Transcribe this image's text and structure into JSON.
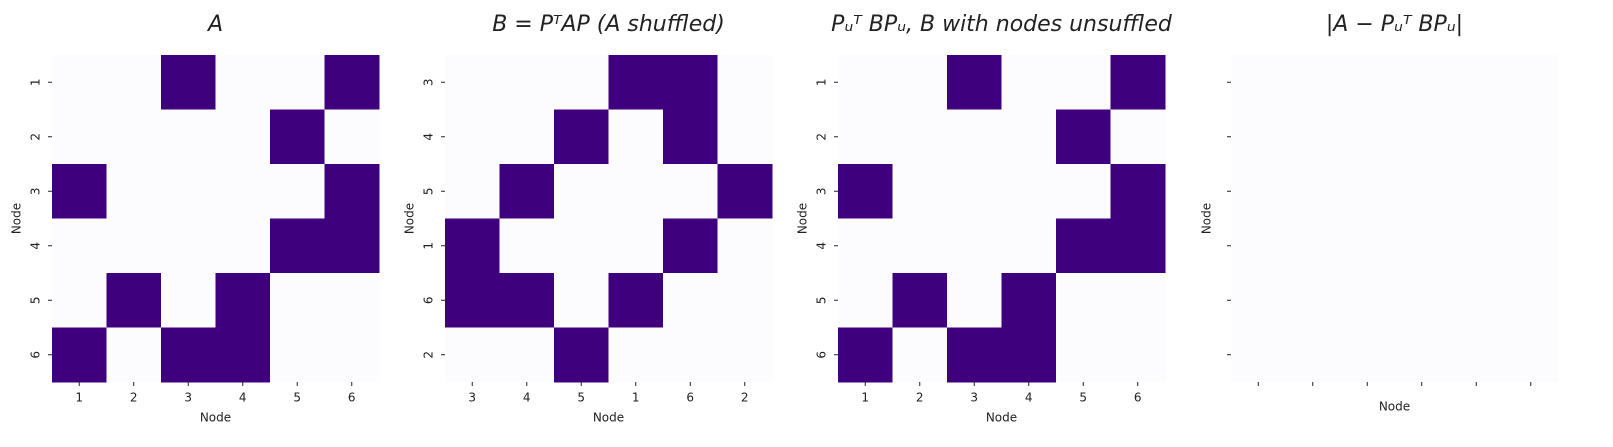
{
  "chart_data": [
    {
      "type": "heatmap",
      "title": "A",
      "xlabel": "Node",
      "ylabel": "Node",
      "x_categories": [
        1,
        2,
        3,
        4,
        5,
        6
      ],
      "y_categories": [
        1,
        2,
        3,
        4,
        5,
        6
      ],
      "values": [
        [
          0,
          0,
          1,
          0,
          0,
          1
        ],
        [
          0,
          0,
          0,
          0,
          1,
          0
        ],
        [
          1,
          0,
          0,
          0,
          0,
          1
        ],
        [
          0,
          0,
          0,
          0,
          1,
          1
        ],
        [
          0,
          1,
          0,
          1,
          0,
          0
        ],
        [
          1,
          0,
          1,
          1,
          0,
          0
        ]
      ],
      "vlim": [
        0,
        1
      ],
      "colors": [
        "#fcfbfd",
        "#3f007d"
      ]
    },
    {
      "type": "heatmap",
      "title": "B = PᵀAP (A shuffled)",
      "xlabel": "Node",
      "ylabel": "Node",
      "x_categories": [
        3,
        4,
        5,
        1,
        6,
        2
      ],
      "y_categories": [
        3,
        4,
        5,
        1,
        6,
        2
      ],
      "values": [
        [
          0,
          0,
          0,
          1,
          1,
          0
        ],
        [
          0,
          0,
          1,
          0,
          1,
          0
        ],
        [
          0,
          1,
          0,
          0,
          0,
          1
        ],
        [
          1,
          0,
          0,
          0,
          1,
          0
        ],
        [
          1,
          1,
          0,
          1,
          0,
          0
        ],
        [
          0,
          0,
          1,
          0,
          0,
          0
        ]
      ],
      "vlim": [
        0,
        1
      ],
      "colors": [
        "#fcfbfd",
        "#3f007d"
      ]
    },
    {
      "type": "heatmap",
      "title": "Pᵤᵀ BPᵤ, B with nodes unsuffled",
      "xlabel": "Node",
      "ylabel": "Node",
      "x_categories": [
        1,
        2,
        3,
        4,
        5,
        6
      ],
      "y_categories": [
        1,
        2,
        3,
        4,
        5,
        6
      ],
      "values": [
        [
          0,
          0,
          1,
          0,
          0,
          1
        ],
        [
          0,
          0,
          0,
          0,
          1,
          0
        ],
        [
          1,
          0,
          0,
          0,
          0,
          1
        ],
        [
          0,
          0,
          0,
          0,
          1,
          1
        ],
        [
          0,
          1,
          0,
          1,
          0,
          0
        ],
        [
          1,
          0,
          1,
          1,
          0,
          0
        ]
      ],
      "vlim": [
        0,
        1
      ],
      "colors": [
        "#fcfbfd",
        "#3f007d"
      ]
    },
    {
      "type": "heatmap",
      "title": "|A − Pᵤᵀ BPᵤ|",
      "xlabel": "Node",
      "ylabel": "Node",
      "x_categories": [
        null,
        null,
        null,
        null,
        null,
        null
      ],
      "y_categories": [
        null,
        null,
        null,
        null,
        null,
        null
      ],
      "values": [
        [
          0,
          0,
          0,
          0,
          0,
          0
        ],
        [
          0,
          0,
          0,
          0,
          0,
          0
        ],
        [
          0,
          0,
          0,
          0,
          0,
          0
        ],
        [
          0,
          0,
          0,
          0,
          0,
          0
        ],
        [
          0,
          0,
          0,
          0,
          0,
          0
        ],
        [
          0,
          0,
          0,
          0,
          0,
          0
        ]
      ],
      "vlim": [
        0,
        1
      ],
      "colors": [
        "#fcfbfd",
        "#3f007d"
      ]
    }
  ]
}
